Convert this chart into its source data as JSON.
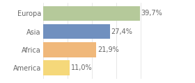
{
  "categories": [
    "Europa",
    "Asia",
    "Africa",
    "America"
  ],
  "values": [
    39.7,
    27.4,
    21.9,
    11.0
  ],
  "labels": [
    "39,7%",
    "27,4%",
    "21,9%",
    "11,0%"
  ],
  "bar_colors": [
    "#b5c99a",
    "#7090bf",
    "#f0b87a",
    "#f5d87a"
  ],
  "background_color": "#ffffff",
  "xlim": [
    0,
    48
  ],
  "bar_height": 0.82,
  "label_fontsize": 7.0,
  "category_fontsize": 7.0,
  "label_color": "#666666",
  "category_color": "#666666",
  "grid_color": "#dddddd"
}
